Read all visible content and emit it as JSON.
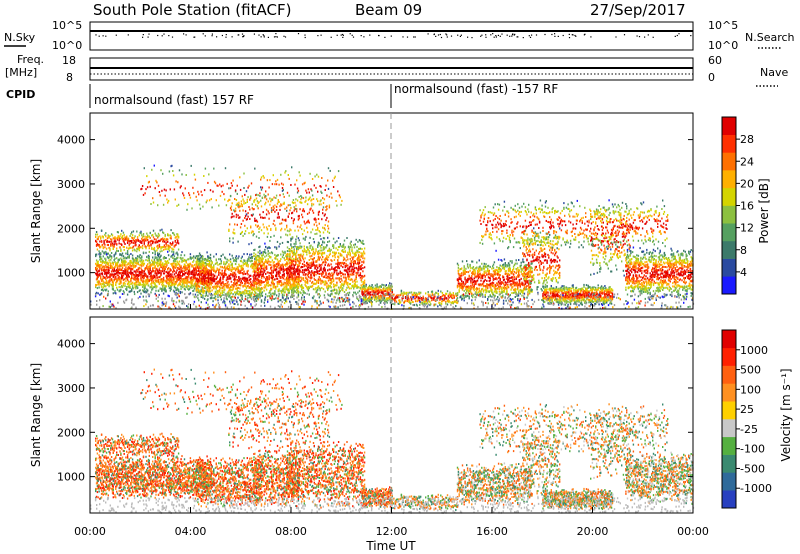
{
  "header": {
    "station": "South Pole Station (fitACF)",
    "beam": "Beam 09",
    "date": "27/Sep/2017"
  },
  "top_panels": {
    "nsky_label": "N.Sky",
    "nsky_ticks": [
      "10^5",
      "10^0"
    ],
    "nsearch_label": "N.Search",
    "nsearch_ticks": [
      "10^5",
      "10^0"
    ],
    "freq_label": "Freq.",
    "freq_unit": "[MHz]",
    "freq_ticks": [
      "18",
      "8"
    ],
    "nave_label": "Nave",
    "nave_ticks": [
      "60",
      "0"
    ],
    "cpid_label": "CPID",
    "cpid_segments": [
      "normalsound (fast) 157 RF",
      "normalsound (fast) -157 RF"
    ]
  },
  "chart_data": [
    {
      "type": "heatmap",
      "name": "power",
      "ylabel": "Slant Range [km]",
      "yticks": [
        1000,
        2000,
        3000,
        4000
      ],
      "ylim": [
        180,
        4600
      ],
      "xlim": [
        0,
        24
      ],
      "colorbar_label": "Power [dB]",
      "colorbar_ticks": [
        4,
        8,
        12,
        16,
        20,
        24,
        28
      ],
      "colorbar_range": [
        0,
        32
      ],
      "colors": [
        "#1a1aff",
        "#2a4aa0",
        "#3c7a6a",
        "#55a060",
        "#8cc040",
        "#d4d400",
        "#ffb000",
        "#ff7000",
        "#ff3000",
        "#e00000"
      ]
    },
    {
      "type": "heatmap",
      "name": "velocity",
      "ylabel": "Slant Range [km]",
      "yticks": [
        1000,
        2000,
        3000,
        4000
      ],
      "ylim": [
        180,
        4600
      ],
      "xlim": [
        0,
        24
      ],
      "xlabel": "Time UT",
      "xticks": [
        "00:00",
        "04:00",
        "08:00",
        "12:00",
        "16:00",
        "20:00",
        "00:00"
      ],
      "colorbar_label": "Velocity [m s⁻¹]",
      "colorbar_ticks": [
        "1000",
        "500",
        "100",
        "25",
        "-25",
        "-100",
        "-500",
        "-1000"
      ],
      "colors": [
        "#2840c0",
        "#2f6a9a",
        "#3a8a70",
        "#55b040",
        "#c8c8c8",
        "#ffd000",
        "#ff9020",
        "#ff6010",
        "#ff2000",
        "#e00000"
      ]
    }
  ]
}
